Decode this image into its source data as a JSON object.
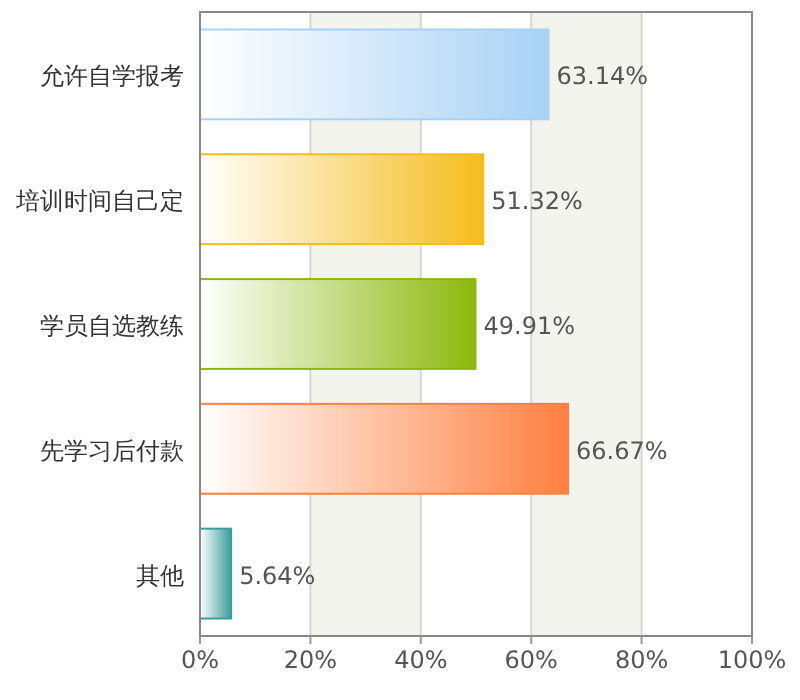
{
  "chart_data": {
    "type": "bar",
    "orientation": "horizontal",
    "categories": [
      "允许自学报考",
      "培训时间自己定",
      "学员自选教练",
      "先学习后付款",
      "其他"
    ],
    "values": [
      63.14,
      51.32,
      49.91,
      66.67,
      5.64
    ],
    "colors": [
      "#a8d2f4",
      "#f4bc1c",
      "#8cb80c",
      "#ff8040",
      "#3c9c9c"
    ],
    "value_labels": [
      "63.14%",
      "51.32%",
      "49.91%",
      "66.67%",
      "5.64%"
    ],
    "xlim": [
      0,
      100
    ],
    "xticks": [
      {
        "value": 0,
        "label": "0%"
      },
      {
        "value": 20,
        "label": "20%"
      },
      {
        "value": 40,
        "label": "40%"
      },
      {
        "value": 60,
        "label": "60%"
      },
      {
        "value": 80,
        "label": "80%"
      },
      {
        "value": 100,
        "label": "100%"
      }
    ],
    "grid": "x"
  }
}
